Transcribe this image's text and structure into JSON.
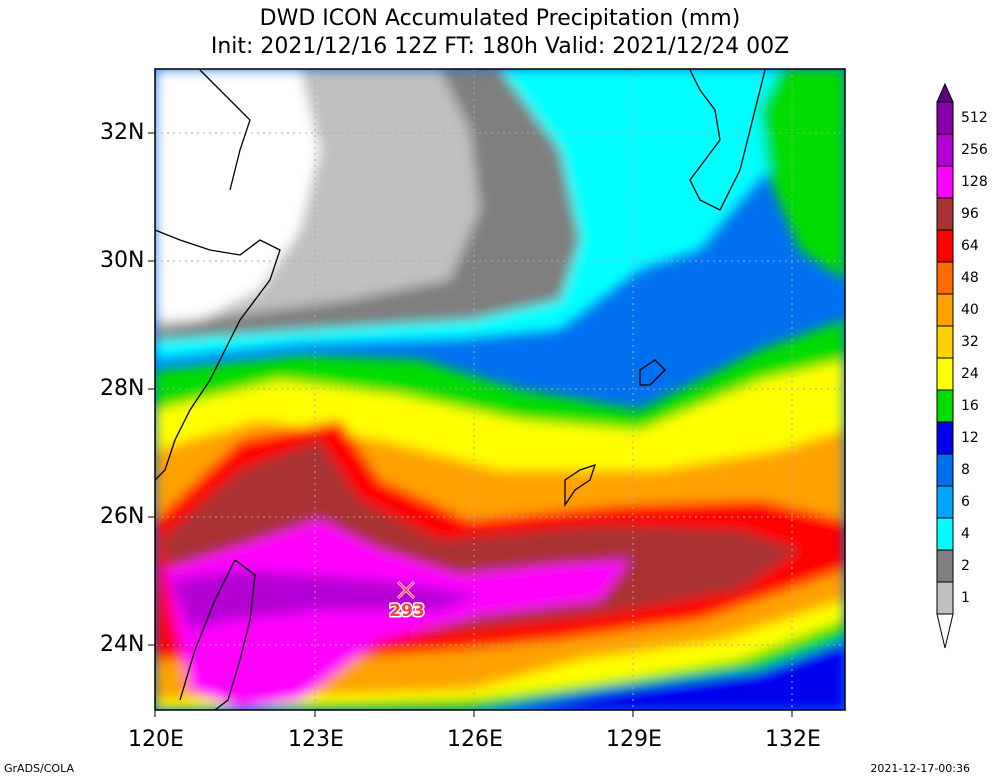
{
  "title_line1": "DWD ICON Accumulated Precipitation (mm)",
  "title_line2": "Init: 2021/12/16 12Z  FT: 180h  Valid: 2021/12/24 00Z",
  "lat_labels": [
    "32N",
    "30N",
    "28N",
    "26N",
    "24N"
  ],
  "lon_labels": [
    "120E",
    "123E",
    "126E",
    "129E",
    "132E"
  ],
  "max_label": "293",
  "footer_left": "GrADS/COLA",
  "footer_right": "2021-12-17-00:36",
  "colorbar": {
    "labels": [
      "512",
      "256",
      "128",
      "96",
      "64",
      "48",
      "40",
      "32",
      "24",
      "16",
      "12",
      "8",
      "6",
      "4",
      "2",
      "1"
    ],
    "colors": [
      "#8800aa",
      "#b400d4",
      "#ff00ff",
      "#a83232",
      "#ff0000",
      "#ff6a00",
      "#ffa200",
      "#ffd200",
      "#ffff00",
      "#00dd00",
      "#0000ee",
      "#0070f0",
      "#00a5ff",
      "#00ffff",
      "#7f7f7f",
      "#c0c0c0"
    ],
    "top_color": "#5a0080"
  }
}
